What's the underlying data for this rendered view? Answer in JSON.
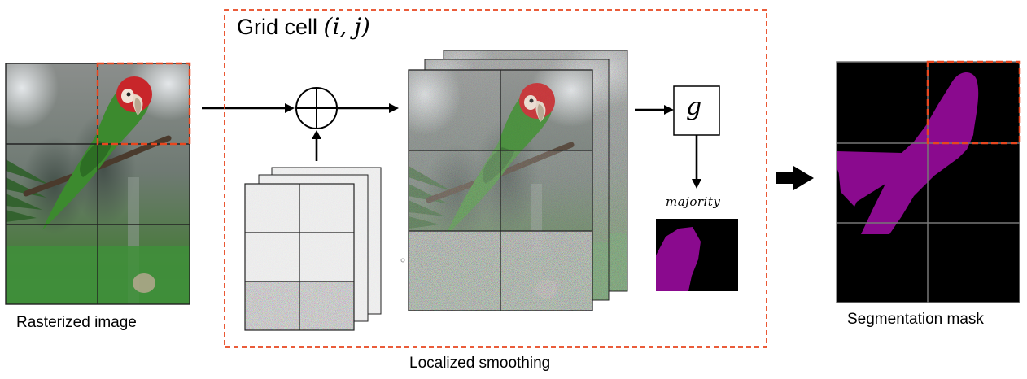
{
  "grid_cell_title": {
    "text": "Grid cell",
    "math": "(i, j)"
  },
  "labels": {
    "rasterized_image": "Rasterized image",
    "localized_smoothing": "Localized smoothing",
    "segmentation_mask": "Segmentation mask",
    "function_g": "g",
    "majority": "majority"
  },
  "colors": {
    "highlight_dashed": "#e8461e",
    "mask_purple": "#8a0a8e",
    "mask_background": "#000000",
    "parrot_red": "#c8262a",
    "parrot_green": "#3c8a2e",
    "foliage_green": "#3f8f3a"
  },
  "icons": {
    "sum_node": "circle-plus-icon",
    "output_arrow": "thick-right-arrow-icon"
  }
}
